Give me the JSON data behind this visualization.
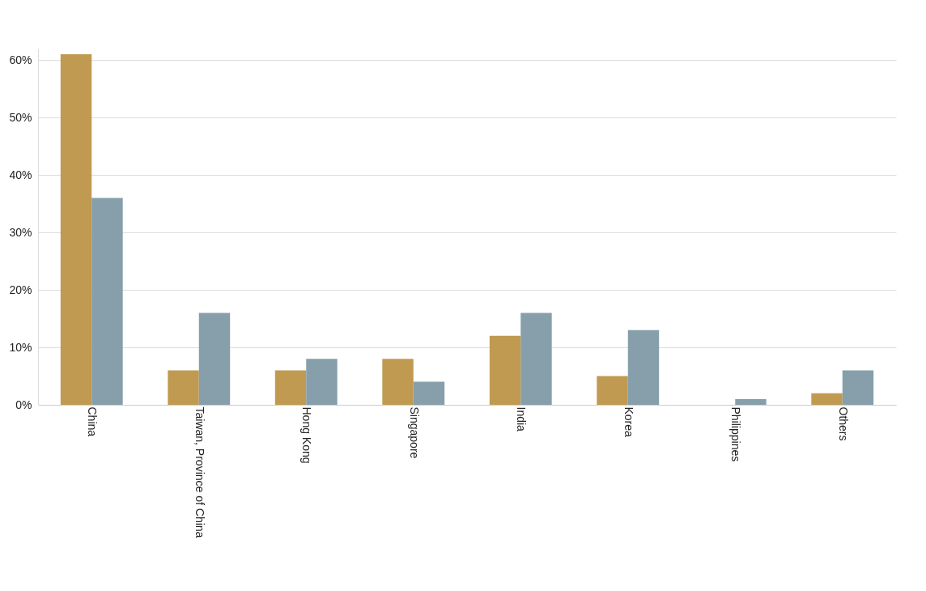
{
  "chart_data": {
    "type": "bar",
    "categories": [
      "China",
      "Taiwan, Province of China",
      "Hong Kong",
      "Singapore",
      "India",
      "Korea",
      "Philippines",
      "Others"
    ],
    "series": [
      {
        "color": "#c09a50",
        "values": [
          61,
          6,
          6,
          8,
          12,
          5,
          0,
          2
        ]
      },
      {
        "color": "#869fab",
        "values": [
          36,
          16,
          8,
          4,
          16,
          13,
          1,
          6
        ]
      }
    ],
    "ylim": [
      0,
      62
    ],
    "yticks": [
      {
        "value": 0,
        "label": "0%"
      },
      {
        "value": 10,
        "label": "10%"
      },
      {
        "value": 20,
        "label": "20%"
      },
      {
        "value": 30,
        "label": "30%"
      },
      {
        "value": 40,
        "label": "40%"
      },
      {
        "value": 50,
        "label": "50%"
      },
      {
        "value": 60,
        "label": "60%"
      }
    ],
    "grid": "y"
  }
}
